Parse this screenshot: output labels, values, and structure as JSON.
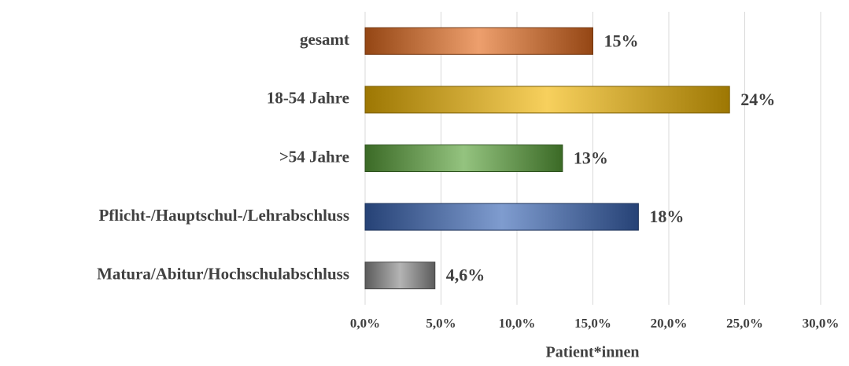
{
  "chart_data": {
    "type": "bar",
    "orientation": "horizontal",
    "categories": [
      "gesamt",
      "18-54 Jahre",
      ">54 Jahre",
      "Pflicht-/Hauptschul-/Lehrabschluss",
      "Matura/Abitur/Hochschulabschluss"
    ],
    "values": [
      15,
      24,
      13,
      18,
      4.6
    ],
    "value_labels": [
      "15%",
      "24%",
      "13%",
      "18%",
      "4,6%"
    ],
    "colors": [
      "#e46c1f",
      "#f2b705",
      "#5aa33a",
      "#3a66b5",
      "#8c8c8c"
    ],
    "xlabel": "Patient*innen",
    "xlim": [
      0,
      30
    ],
    "xticks": [
      {
        "value": 0,
        "label": "0,0%"
      },
      {
        "value": 5,
        "label": "5,0%"
      },
      {
        "value": 10,
        "label": "10,0%"
      },
      {
        "value": 15,
        "label": "15,0%"
      },
      {
        "value": 20,
        "label": "20,0%"
      },
      {
        "value": 25,
        "label": "25,0%"
      },
      {
        "value": 30,
        "label": "30,0%"
      }
    ],
    "grid": true
  }
}
